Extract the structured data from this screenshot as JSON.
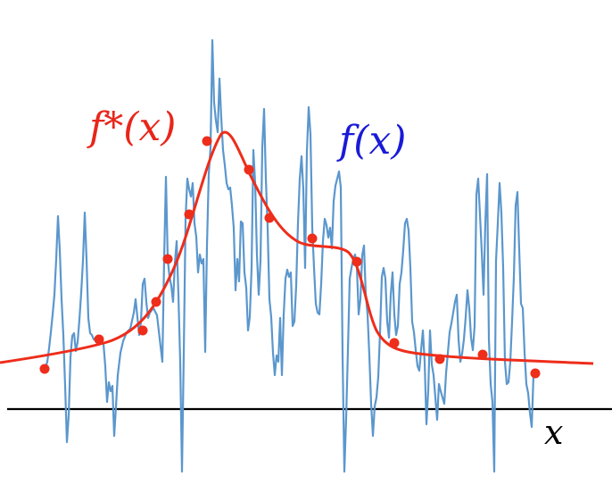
{
  "labels": {
    "target_function": "f*(x)",
    "fitted_function": "f(x)",
    "axis": "x"
  },
  "colors": {
    "target": "#ee2d1a",
    "fitted": "#5b97cd",
    "axis": "#000000",
    "target_label": "#e8261a",
    "fitted_label": "#1a1ad8"
  },
  "chart_data": {
    "type": "line",
    "xlabel": "x",
    "ylabel": "",
    "grid": false,
    "legend": "none",
    "x_range": [
      0,
      686
    ],
    "y_range": [
      -3,
      19
    ]
  }
}
